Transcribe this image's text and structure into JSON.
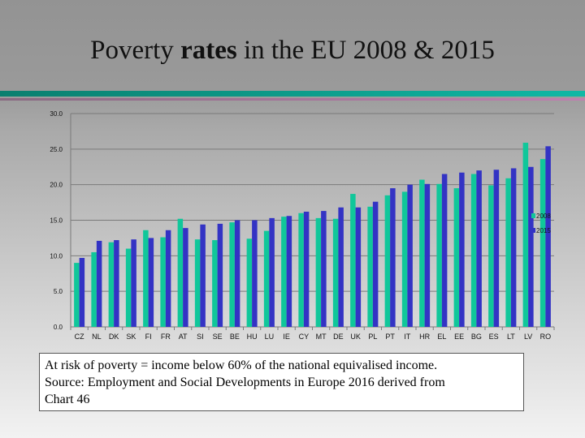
{
  "title": {
    "pre": "Poverty ",
    "bold": "rates",
    "post": " in the EU 2008 & 2015"
  },
  "note": {
    "lines": [
      "At risk of poverty = income below 60% of the national equivalised income.",
      "Source: Employment and Social Developments in Europe 2016 derived from",
      "Chart 46"
    ]
  },
  "chart_data": {
    "type": "bar",
    "categories": [
      "CZ",
      "NL",
      "DK",
      "SK",
      "FI",
      "FR",
      "AT",
      "SI",
      "SE",
      "BE",
      "HU",
      "LU",
      "IE",
      "CY",
      "MT",
      "DE",
      "UK",
      "PL",
      "PT",
      "IT",
      "HR",
      "EL",
      "EE",
      "BG",
      "ES",
      "LT",
      "LV",
      "RO"
    ],
    "series": [
      {
        "name": "2008",
        "color": "#10c79a",
        "values": [
          9.0,
          10.5,
          11.9,
          11.0,
          13.6,
          12.6,
          15.2,
          12.3,
          12.2,
          14.7,
          12.4,
          13.5,
          15.5,
          16.0,
          15.3,
          15.2,
          18.7,
          16.9,
          18.5,
          19.0,
          20.7,
          20.1,
          19.5,
          21.5,
          19.9,
          20.9,
          25.9,
          23.6
        ]
      },
      {
        "name": "2015",
        "color": "#3333c4",
        "values": [
          9.7,
          12.1,
          12.2,
          12.3,
          12.5,
          13.6,
          13.9,
          14.4,
          14.5,
          15.0,
          15.0,
          15.3,
          15.6,
          16.2,
          16.3,
          16.8,
          16.8,
          17.6,
          19.5,
          20.0,
          20.1,
          21.5,
          21.7,
          22.0,
          22.1,
          22.3,
          22.5,
          25.4
        ]
      }
    ],
    "ylim": [
      0,
      30
    ],
    "yticks": [
      "0.0",
      "5.0",
      "10.0",
      "15.0",
      "20.0",
      "25.0",
      "30.0"
    ],
    "grid": true,
    "legend": "right"
  }
}
